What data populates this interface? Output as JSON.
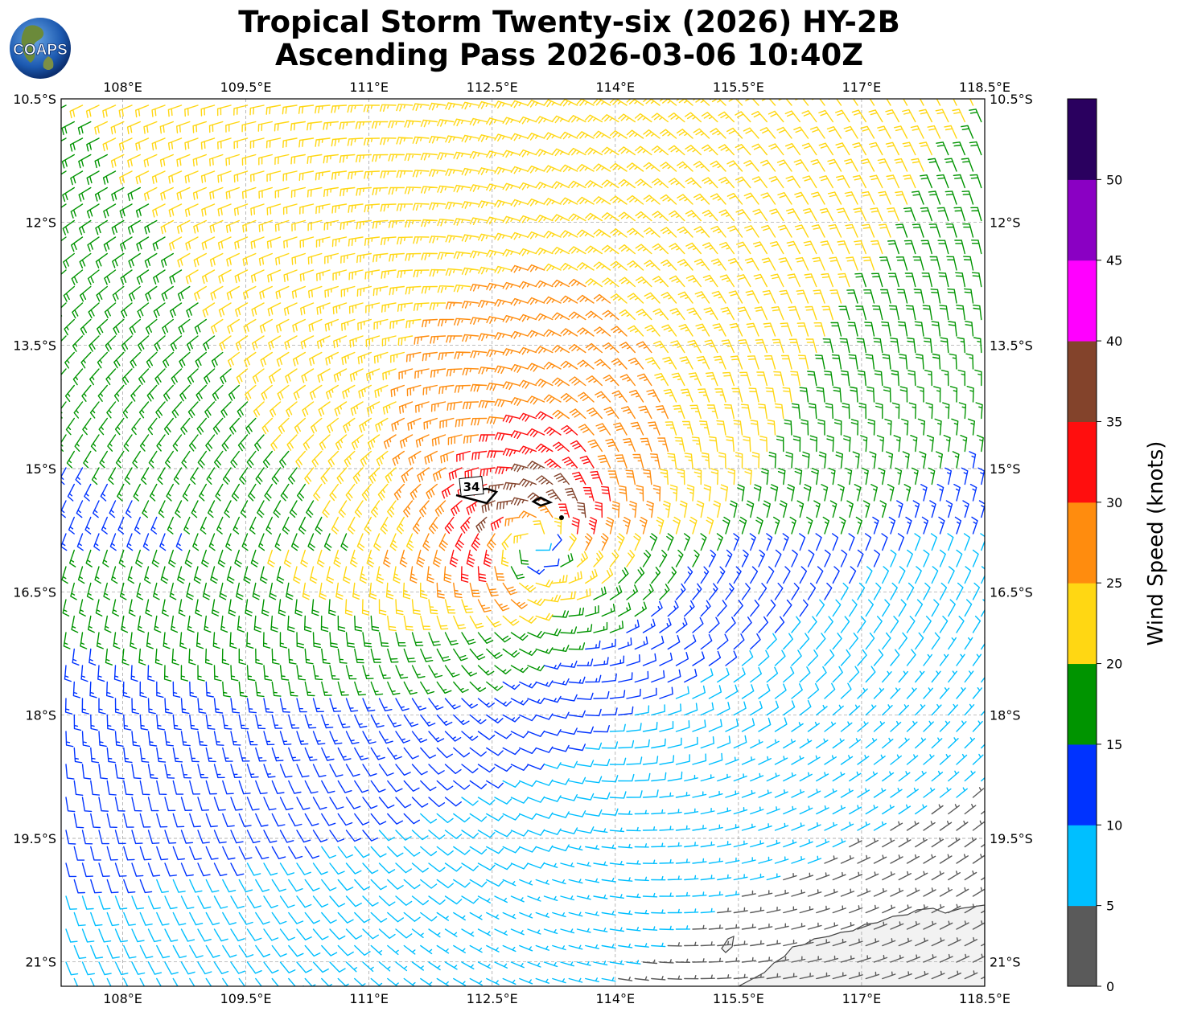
{
  "header": {
    "title_line1": "Tropical Storm Twenty-six (2026) HY-2B",
    "title_line2": "Ascending Pass 2026-03-06 10:40Z",
    "logo_text": "COAPS"
  },
  "map": {
    "lon_range": [
      107.25,
      118.5
    ],
    "lat_range": [
      -21.3,
      -10.5
    ],
    "lon_ticks": [
      108,
      109.5,
      111,
      112.5,
      114,
      115.5,
      117,
      118.5
    ],
    "lon_tick_labels": [
      "108°E",
      "109.5°E",
      "111°E",
      "112.5°E",
      "114°E",
      "115.5°E",
      "117°E",
      "118.5°E"
    ],
    "lat_ticks": [
      -10.5,
      -12,
      -13.5,
      -15,
      -16.5,
      -18,
      -19.5,
      -21
    ],
    "lat_tick_labels": [
      "10.5°S",
      "12°S",
      "13.5°S",
      "15°S",
      "16.5°S",
      "18°S",
      "19.5°S",
      "21°S"
    ],
    "gridlines": true,
    "storm_center": {
      "lon": 113.0,
      "lat": -15.9
    },
    "contour_label": "34",
    "land": "Western Australia coast, bottom-right"
  },
  "colorbar": {
    "label": "Wind Speed (knots)",
    "ticks": [
      "0",
      "5",
      "10",
      "15",
      "20",
      "25",
      "30",
      "35",
      "40",
      "45",
      "50"
    ],
    "bins": [
      {
        "min": 0,
        "color": "#5a5a5a"
      },
      {
        "min": 5,
        "color": "#00bfff"
      },
      {
        "min": 10,
        "color": "#0033ff"
      },
      {
        "min": 15,
        "color": "#009400"
      },
      {
        "min": 20,
        "color": "#ffd713"
      },
      {
        "min": 25,
        "color": "#ff8c0e"
      },
      {
        "min": 30,
        "color": "#ff0e0e"
      },
      {
        "min": 35,
        "color": "#83432b"
      },
      {
        "min": 40,
        "color": "#ff00ff"
      },
      {
        "min": 45,
        "color": "#8a00c3"
      },
      {
        "min": 50,
        "color": "#2a005f"
      }
    ]
  }
}
